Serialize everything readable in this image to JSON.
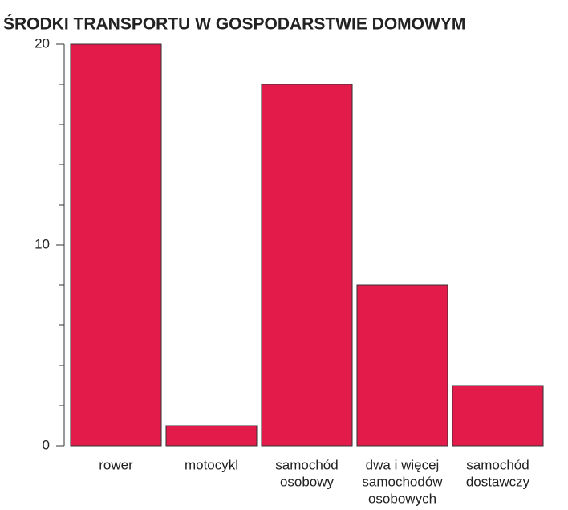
{
  "chart_data": {
    "type": "bar",
    "title": "ŚRODKI TRANSPORTU W GOSPODARSTWIE DOMOWYM",
    "categories": [
      [
        "rower"
      ],
      [
        "motocykl"
      ],
      [
        "samochód",
        "osobowy"
      ],
      [
        "dwa i więcej",
        "samochodów",
        "osobowych"
      ],
      [
        "samochód",
        "dostawczy"
      ]
    ],
    "values": [
      20,
      1,
      18,
      8,
      3
    ],
    "color": "#e31b4b",
    "ylim": [
      0,
      20
    ],
    "yticks": [
      0,
      10,
      20
    ],
    "minor_yticks": [
      2,
      4,
      6,
      8,
      12,
      14,
      16,
      18
    ]
  }
}
